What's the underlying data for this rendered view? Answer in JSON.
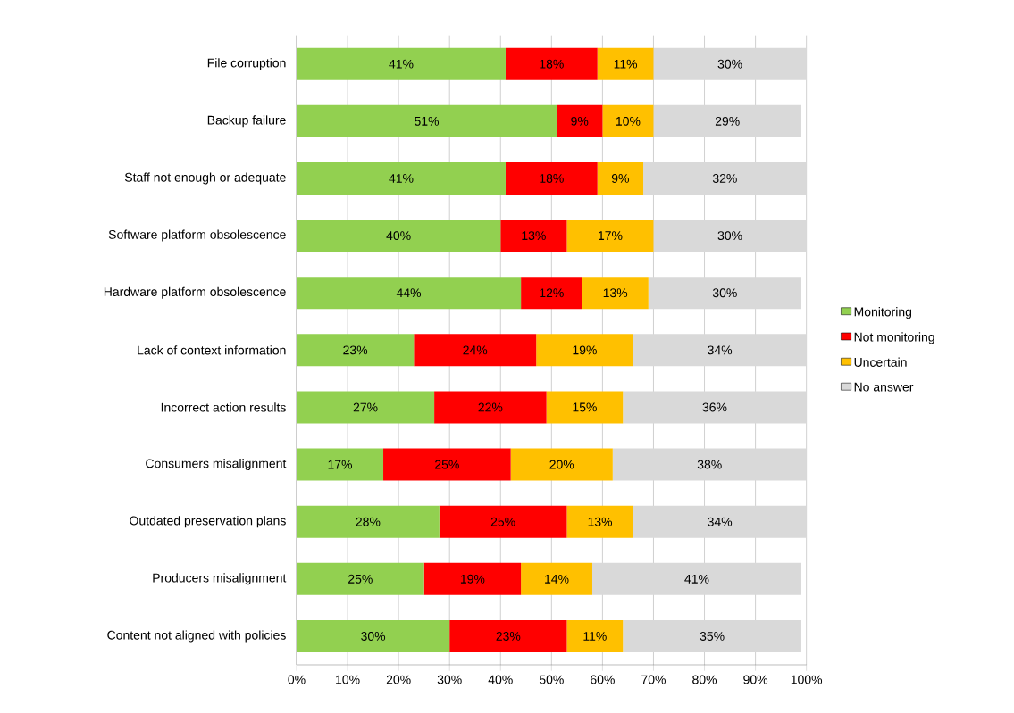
{
  "chart_data": {
    "type": "bar",
    "orientation": "horizontal",
    "stacked": true,
    "categories": [
      "File corruption",
      "Backup failure",
      "Staff not enough or adequate",
      "Software platform obsolescence",
      "Hardware platform obsolescence",
      "Lack of context information",
      "Incorrect action results",
      "Consumers misalignment",
      "Outdated preservation plans",
      "Producers misalignment",
      "Content not aligned with policies"
    ],
    "series": [
      {
        "name": "Monitoring",
        "color": "#92d050",
        "values": [
          41,
          51,
          41,
          40,
          44,
          23,
          27,
          17,
          28,
          25,
          30
        ],
        "value_labels": [
          "41%",
          "51%",
          "41%",
          "40%",
          "44%",
          "23%",
          "27%",
          "17%",
          "28%",
          "25%",
          "30%"
        ]
      },
      {
        "name": "Not monitoring",
        "color": "#ff0000",
        "values": [
          18,
          9,
          18,
          13,
          12,
          24,
          22,
          25,
          25,
          19,
          23
        ],
        "value_labels": [
          "18%",
          "9%",
          "18%",
          "13%",
          "12%",
          "24%",
          "22%",
          "25%",
          "25%",
          "19%",
          "23%"
        ]
      },
      {
        "name": "Uncertain",
        "color": "#ffc000",
        "values": [
          11,
          10,
          9,
          17,
          13,
          19,
          15,
          20,
          13,
          14,
          11
        ],
        "value_labels": [
          "11%",
          "10%",
          "9%",
          "17%",
          "13%",
          "19%",
          "15%",
          "20%",
          "13%",
          "14%",
          "11%"
        ]
      },
      {
        "name": "No answer",
        "color": "#d9d9d9",
        "values": [
          30,
          29,
          32,
          30,
          30,
          34,
          36,
          38,
          34,
          41,
          35
        ],
        "value_labels": [
          "30%",
          "29%",
          "32%",
          "30%",
          "30%",
          "34%",
          "36%",
          "38%",
          "34%",
          "41%",
          "35%"
        ]
      }
    ],
    "xlim": [
      0,
      100
    ],
    "xticks": [
      {
        "value": 0,
        "label": "0%"
      },
      {
        "value": 10,
        "label": "10%"
      },
      {
        "value": 20,
        "label": "20%"
      },
      {
        "value": 30,
        "label": "30%"
      },
      {
        "value": 40,
        "label": "40%"
      },
      {
        "value": 50,
        "label": "50%"
      },
      {
        "value": 60,
        "label": "60%"
      },
      {
        "value": 70,
        "label": "70%"
      },
      {
        "value": 80,
        "label": "80%"
      },
      {
        "value": 90,
        "label": "90%"
      },
      {
        "value": 100,
        "label": "100%"
      }
    ],
    "grid": "x",
    "legend": "right"
  }
}
